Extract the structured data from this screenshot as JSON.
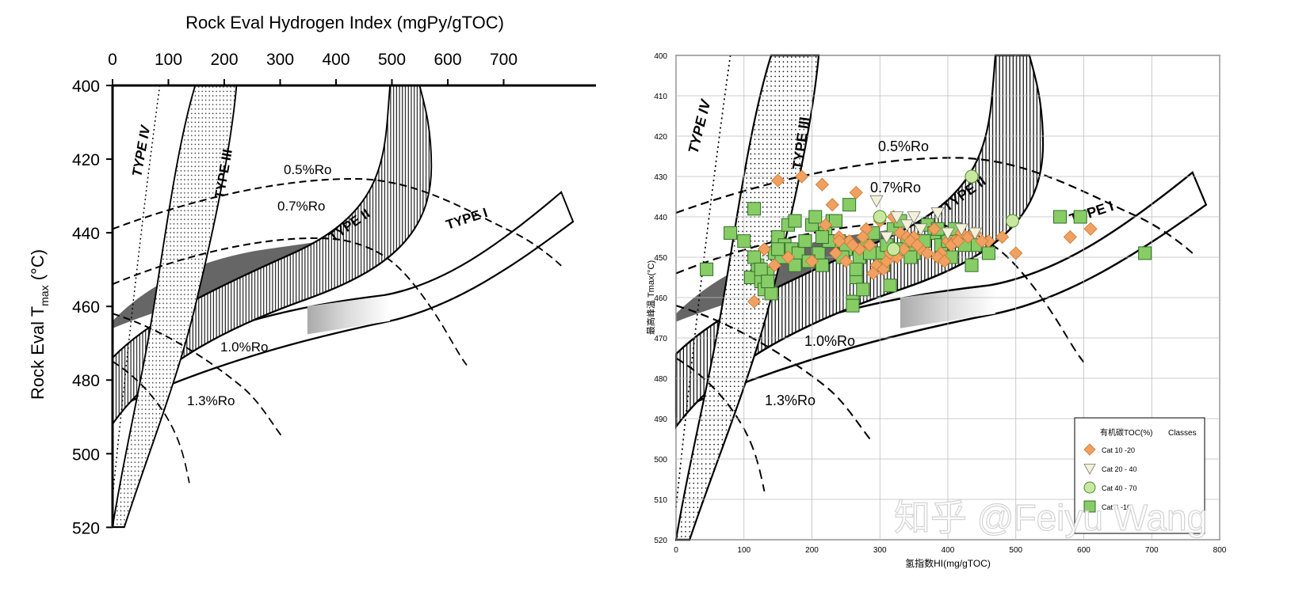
{
  "chart_data": [
    {
      "type": "line",
      "panel": "left",
      "title": "",
      "xlabel": "Rock Eval Hydrogen Index (mgPy/gTOC)",
      "ylabel_main": "Rock Eval T",
      "ylabel_sub": "max",
      "ylabel_unit": " (°C)",
      "xlim": [
        0,
        800
      ],
      "ylim": [
        400,
        520
      ],
      "y_inverted": true,
      "x_axis_position": "top",
      "xticks": [
        "0",
        "100",
        "200",
        "300",
        "400",
        "500",
        "600",
        "700"
      ],
      "yticks": [
        "400",
        "420",
        "440",
        "460",
        "480",
        "500",
        "520"
      ],
      "grid": false,
      "kerogen_labels": [
        "TYPE IV",
        "TYPE III",
        "TYPE II",
        "TYPE I"
      ],
      "maturity_labels": [
        "0.5%Ro",
        "0.7%Ro",
        "1.0%Ro",
        "1.3%Ro"
      ],
      "series": [
        {
          "name": "TYPE IV",
          "x": [
            80,
            55,
            30,
            12,
            0
          ],
          "y": [
            400,
            430,
            460,
            490,
            520
          ]
        },
        {
          "name": "TYPE III",
          "x": [
            190,
            150,
            130,
            110,
            70,
            20,
            0
          ],
          "y": [
            400,
            420,
            440,
            460,
            480,
            505,
            520
          ]
        },
        {
          "name": "TYPE II",
          "x": [
            500,
            470,
            380,
            220,
            120,
            40,
            0
          ],
          "y": [
            400,
            430,
            445,
            455,
            465,
            480,
            495
          ]
        },
        {
          "name": "TYPE I",
          "x": [
            760,
            620,
            430,
            250,
            120,
            20,
            0
          ],
          "y": [
            425,
            435,
            445,
            453,
            462,
            475,
            485
          ]
        },
        {
          "name": "0.5%Ro",
          "x": [
            0,
            150,
            300,
            420,
            520,
            620,
            750
          ],
          "y": [
            437,
            430,
            425,
            425,
            430,
            438,
            448
          ]
        },
        {
          "name": "0.7%Ro",
          "x": [
            0,
            150,
            300,
            400,
            480,
            560,
            680
          ],
          "y": [
            448,
            441,
            437,
            437,
            443,
            452,
            465
          ]
        },
        {
          "name": "1.0%Ro",
          "x": [
            0,
            100,
            200,
            260,
            300
          ],
          "y": [
            456,
            460,
            468,
            474,
            478
          ]
        },
        {
          "name": "1.3%Ro",
          "x": [
            0,
            60,
            110,
            140
          ],
          "y": [
            466,
            472,
            483,
            493
          ]
        }
      ]
    },
    {
      "type": "scatter",
      "panel": "right",
      "title": "",
      "xlabel": "氢指数HI(mg/gTOC)",
      "ylabel": "最高峰温 Tmax(°C)",
      "xlim": [
        0,
        800
      ],
      "ylim": [
        400,
        520
      ],
      "y_inverted": true,
      "xticks": [
        "0",
        "100",
        "200",
        "300",
        "400",
        "500",
        "600",
        "700",
        "800"
      ],
      "yticks": [
        "400",
        "410",
        "420",
        "430",
        "440",
        "450",
        "460",
        "470",
        "480",
        "490",
        "500",
        "510",
        "520"
      ],
      "grid": true,
      "legend_position": "bottom-right",
      "legend_title": "有机碳TOC(%)",
      "legend_subtitle": "Classes",
      "watermark": "知乎 @Feiyu Wang",
      "kerogen_labels": [
        "TYPE IV",
        "TYPE III",
        "TYPE II",
        "TYPE I"
      ],
      "maturity_labels": [
        "0.5%Ro",
        "0.7%Ro",
        "1.0%Ro",
        "1.3%Ro"
      ],
      "series": [
        {
          "name": "Cat 10 -20",
          "marker": "diamond",
          "color": "#f0a060",
          "x": [
            150,
            185,
            215,
            230,
            265,
            280,
            300,
            320,
            330,
            340,
            350,
            360,
            380,
            390,
            400,
            410,
            420,
            460,
            480,
            500,
            220,
            240,
            255,
            270,
            285,
            295,
            305,
            310,
            325,
            335,
            345,
            355,
            370,
            385,
            395,
            405,
            415,
            430,
            440,
            450,
            115,
            130,
            145,
            165,
            200,
            250,
            260,
            275,
            290,
            315,
            580,
            610,
            240,
            235
          ],
          "y": [
            431,
            430,
            432,
            437,
            434,
            443,
            441,
            440,
            444,
            445,
            445,
            448,
            443,
            449,
            446,
            446,
            444,
            446,
            445,
            449,
            442,
            445,
            446,
            448,
            447,
            452,
            453,
            451,
            450,
            448,
            446,
            447,
            449,
            450,
            451,
            447,
            446,
            445,
            444,
            446,
            461,
            448,
            452,
            450,
            451,
            451,
            447,
            445,
            454,
            449,
            445,
            443,
            446,
            449
          ]
        },
        {
          "name": "Cat 20 - 40",
          "marker": "triangle-down",
          "color": "#f2f2d8",
          "x": [
            295,
            325,
            340,
            350,
            385,
            420,
            440,
            310,
            360,
            400
          ],
          "y": [
            436,
            440,
            442,
            440,
            439,
            443,
            444,
            445,
            443,
            444
          ]
        },
        {
          "name": "Cat 40 - 70",
          "marker": "circle",
          "color": "#c8e8a0",
          "x": [
            435,
            495,
            320,
            300
          ],
          "y": [
            430,
            441,
            448,
            440
          ]
        },
        {
          "name": "Cat 6 -10",
          "marker": "square",
          "color": "#88cc66",
          "x": [
            45,
            80,
            100,
            110,
            115,
            120,
            125,
            130,
            135,
            140,
            145,
            150,
            155,
            160,
            165,
            170,
            175,
            180,
            190,
            200,
            205,
            210,
            215,
            220,
            230,
            240,
            250,
            255,
            260,
            265,
            270,
            280,
            290,
            300,
            310,
            320,
            330,
            340,
            350,
            360,
            370,
            380,
            390,
            400,
            410,
            420,
            440,
            460,
            565,
            595,
            690,
            115,
            125,
            135,
            150,
            175,
            195,
            225,
            245,
            265,
            285,
            305,
            325,
            345,
            365,
            385,
            405,
            425,
            260,
            275,
            315,
            435,
            215,
            235
          ],
          "y": [
            453,
            444,
            446,
            455,
            438,
            452,
            456,
            458,
            454,
            459,
            449,
            445,
            450,
            447,
            442,
            448,
            441,
            449,
            446,
            442,
            440,
            449,
            452,
            444,
            441,
            446,
            448,
            437,
            461,
            455,
            450,
            446,
            444,
            449,
            447,
            443,
            441,
            446,
            449,
            446,
            442,
            444,
            447,
            446,
            443,
            446,
            447,
            449,
            440,
            440,
            449,
            450,
            453,
            456,
            448,
            452,
            451,
            446,
            450,
            453,
            449,
            452,
            448,
            450,
            446,
            443,
            450,
            447,
            462,
            458,
            457,
            452,
            445,
            441
          ]
        }
      ]
    }
  ]
}
